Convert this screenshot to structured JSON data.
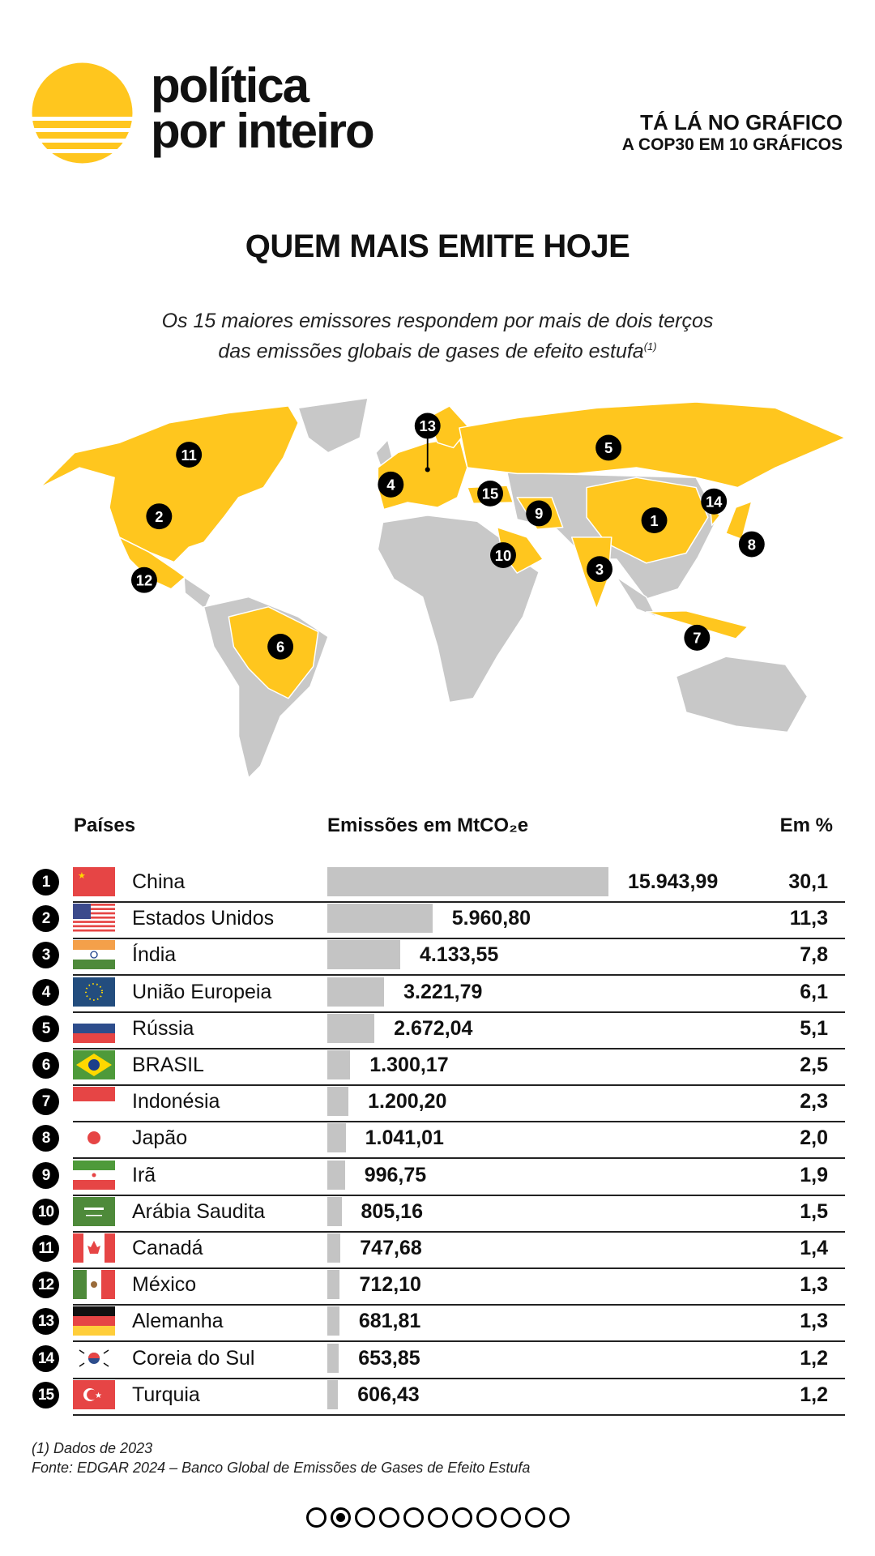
{
  "brand": {
    "line1": "política",
    "line2": "por inteiro",
    "color": "#FFC61E"
  },
  "kicker": {
    "line1": "TÁ LÁ NO GRÁFICO",
    "line2": "A COP30 EM 10 GRÁFICOS"
  },
  "title": "QUEM MAIS EMITE HOJE",
  "subtitle": {
    "line1": "Os 15 maiores emissores respondem por mais de dois terços",
    "line2": "das emissões globais de gases de efeito estufa",
    "footnote_mark": "(1)"
  },
  "map": {
    "highlight_color": "#FFC61E",
    "base_color": "#C8C8C8",
    "markers": [
      "1",
      "2",
      "3",
      "4",
      "5",
      "6",
      "7",
      "8",
      "9",
      "10",
      "11",
      "12",
      "13",
      "14",
      "15"
    ]
  },
  "table": {
    "headers": {
      "country": "Países",
      "emissions": "Emissões em MtCO₂e",
      "percent": "Em %"
    },
    "bar_color": "#C4C4C4",
    "rows": [
      {
        "rank": "1",
        "flag": "china-flag-icon",
        "country": "China",
        "value": 15943.99,
        "value_label": "15.943,99",
        "percent": "30,1"
      },
      {
        "rank": "2",
        "flag": "usa-flag-icon",
        "country": "Estados Unidos",
        "value": 5960.8,
        "value_label": "5.960,80",
        "percent": "11,3"
      },
      {
        "rank": "3",
        "flag": "india-flag-icon",
        "country": "Índia",
        "value": 4133.55,
        "value_label": "4.133,55",
        "percent": "7,8"
      },
      {
        "rank": "4",
        "flag": "eu-flag-icon",
        "country": "União Europeia",
        "value": 3221.79,
        "value_label": "3.221,79",
        "percent": "6,1"
      },
      {
        "rank": "5",
        "flag": "russia-flag-icon",
        "country": "Rússia",
        "value": 2672.04,
        "value_label": "2.672,04",
        "percent": "5,1"
      },
      {
        "rank": "6",
        "flag": "brazil-flag-icon",
        "country": "BRASIL",
        "value": 1300.17,
        "value_label": "1.300,17",
        "percent": "2,5"
      },
      {
        "rank": "7",
        "flag": "indonesia-flag-icon",
        "country": "Indonésia",
        "value": 1200.2,
        "value_label": "1.200,20",
        "percent": "2,3"
      },
      {
        "rank": "8",
        "flag": "japan-flag-icon",
        "country": "Japão",
        "value": 1041.01,
        "value_label": "1.041,01",
        "percent": "2,0"
      },
      {
        "rank": "9",
        "flag": "iran-flag-icon",
        "country": "Irã",
        "value": 996.75,
        "value_label": "996,75",
        "percent": "1,9"
      },
      {
        "rank": "10",
        "flag": "saudi-arabia-flag-icon",
        "country": "Arábia Saudita",
        "value": 805.16,
        "value_label": "805,16",
        "percent": "1,5"
      },
      {
        "rank": "11",
        "flag": "canada-flag-icon",
        "country": "Canadá",
        "value": 747.68,
        "value_label": "747,68",
        "percent": "1,4"
      },
      {
        "rank": "12",
        "flag": "mexico-flag-icon",
        "country": "México",
        "value": 712.1,
        "value_label": "712,10",
        "percent": "1,3"
      },
      {
        "rank": "13",
        "flag": "germany-flag-icon",
        "country": "Alemanha",
        "value": 681.81,
        "value_label": "681,81",
        "percent": "1,3"
      },
      {
        "rank": "14",
        "flag": "south-korea-flag-icon",
        "country": "Coreia do Sul",
        "value": 653.85,
        "value_label": "653,85",
        "percent": "1,2"
      },
      {
        "rank": "15",
        "flag": "turkey-flag-icon",
        "country": "Turquia",
        "value": 606.43,
        "value_label": "606,43",
        "percent": "1,2"
      }
    ]
  },
  "notes": {
    "line1": "(1) Dados de 2023",
    "line2": "Fonte: EDGAR 2024 – Banco Global de Emissões de Gases de Efeito Estufa"
  },
  "pagination": {
    "total": 11,
    "current": 2
  }
}
